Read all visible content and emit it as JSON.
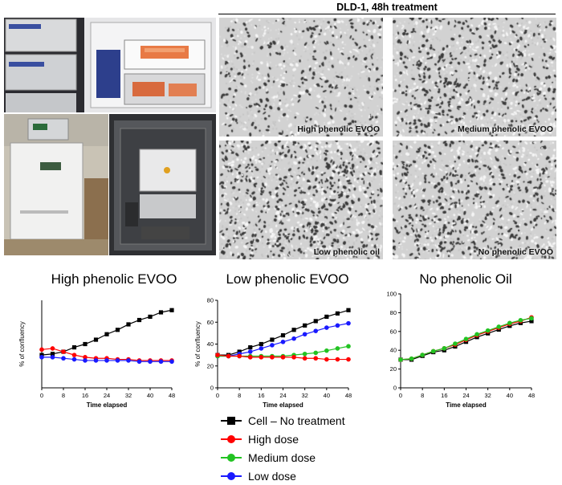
{
  "figure": {
    "microscopy_title": "DLD-1, 48h treatment",
    "panels": [
      {
        "label": "High phenolic EVOO",
        "density": 0.35
      },
      {
        "label": "Medium phenolic EVOO",
        "density": 0.55
      },
      {
        "label": "Low phenolic oil",
        "density": 0.7
      },
      {
        "label": "No phenolic EVOO",
        "density": 0.6
      }
    ]
  },
  "legend": [
    {
      "label": "Cell – No treatment",
      "color": "#000000",
      "marker": "square"
    },
    {
      "label": "High dose",
      "color": "#ff0000",
      "marker": "circle"
    },
    {
      "label": "Medium dose",
      "color": "#22c322",
      "marker": "circle"
    },
    {
      "label": "Low dose",
      "color": "#1a1aff",
      "marker": "circle"
    }
  ],
  "chart_data": [
    {
      "type": "line",
      "title": "High phenolic EVOO",
      "xlabel": "Time elapsed",
      "ylabel": "% of confluency",
      "x": [
        0,
        4,
        8,
        12,
        16,
        20,
        24,
        28,
        32,
        36,
        40,
        44,
        48
      ],
      "xticks": [
        0,
        8,
        16,
        24,
        32,
        40,
        48
      ],
      "yticks": [],
      "xlim": [
        0,
        48
      ],
      "ylim": [
        0,
        80
      ],
      "series": [
        {
          "name": "Cell – No treatment",
          "color": "#000000",
          "marker": "square",
          "values": [
            30,
            31,
            33,
            37,
            40,
            44,
            49,
            53,
            58,
            62,
            65,
            69,
            71
          ]
        },
        {
          "name": "High dose",
          "color": "#ff0000",
          "marker": "circle",
          "values": [
            35,
            36,
            33,
            30,
            28,
            27,
            27,
            26,
            26,
            25,
            25,
            25,
            25
          ]
        },
        {
          "name": "Low dose",
          "color": "#1a1aff",
          "marker": "circle",
          "values": [
            28,
            28,
            27,
            26,
            25,
            25,
            25,
            25,
            25,
            24,
            24,
            24,
            24
          ]
        }
      ]
    },
    {
      "type": "line",
      "title": "Low phenolic EVOO",
      "xlabel": "Time elapsed",
      "ylabel": "% of confluency",
      "x": [
        0,
        4,
        8,
        12,
        16,
        20,
        24,
        28,
        32,
        36,
        40,
        44,
        48
      ],
      "xticks": [
        0,
        8,
        16,
        24,
        32,
        40,
        48
      ],
      "yticks": [
        0,
        20,
        40,
        60,
        80
      ],
      "xlim": [
        0,
        48
      ],
      "ylim": [
        0,
        80
      ],
      "series": [
        {
          "name": "Cell – No treatment",
          "color": "#000000",
          "marker": "square",
          "values": [
            30,
            30,
            33,
            37,
            40,
            44,
            48,
            53,
            57,
            61,
            65,
            68,
            71
          ]
        },
        {
          "name": "Low dose",
          "color": "#1a1aff",
          "marker": "circle",
          "values": [
            29,
            29,
            31,
            33,
            36,
            39,
            42,
            45,
            49,
            52,
            55,
            57,
            59
          ]
        },
        {
          "name": "Medium dose",
          "color": "#22c322",
          "marker": "circle",
          "values": [
            29,
            29,
            29,
            29,
            29,
            29,
            29,
            30,
            31,
            32,
            34,
            36,
            38
          ]
        },
        {
          "name": "High dose",
          "color": "#ff0000",
          "marker": "circle",
          "values": [
            30,
            29,
            29,
            28,
            28,
            28,
            28,
            28,
            27,
            27,
            26,
            26,
            26
          ]
        }
      ]
    },
    {
      "type": "line",
      "title": "No phenolic Oil",
      "xlabel": "Time elapsed",
      "ylabel": "",
      "x": [
        0,
        4,
        8,
        12,
        16,
        20,
        24,
        28,
        32,
        36,
        40,
        44,
        48
      ],
      "xticks": [
        0,
        8,
        16,
        24,
        32,
        40,
        48
      ],
      "yticks": [
        0,
        20,
        40,
        60,
        80,
        100
      ],
      "xlim": [
        0,
        48
      ],
      "ylim": [
        0,
        100
      ],
      "series": [
        {
          "name": "Cell – No treatment",
          "color": "#000000",
          "marker": "square",
          "values": [
            30,
            30,
            34,
            38,
            40,
            44,
            49,
            54,
            58,
            62,
            66,
            69,
            71
          ]
        },
        {
          "name": "High dose",
          "color": "#ff0000",
          "marker": "circle",
          "values": [
            30,
            31,
            35,
            39,
            42,
            46,
            51,
            56,
            60,
            64,
            68,
            71,
            75
          ]
        },
        {
          "name": "Medium dose",
          "color": "#22c322",
          "marker": "circle",
          "values": [
            30,
            31,
            35,
            39,
            42,
            47,
            52,
            57,
            61,
            65,
            69,
            72,
            74
          ]
        }
      ]
    }
  ]
}
